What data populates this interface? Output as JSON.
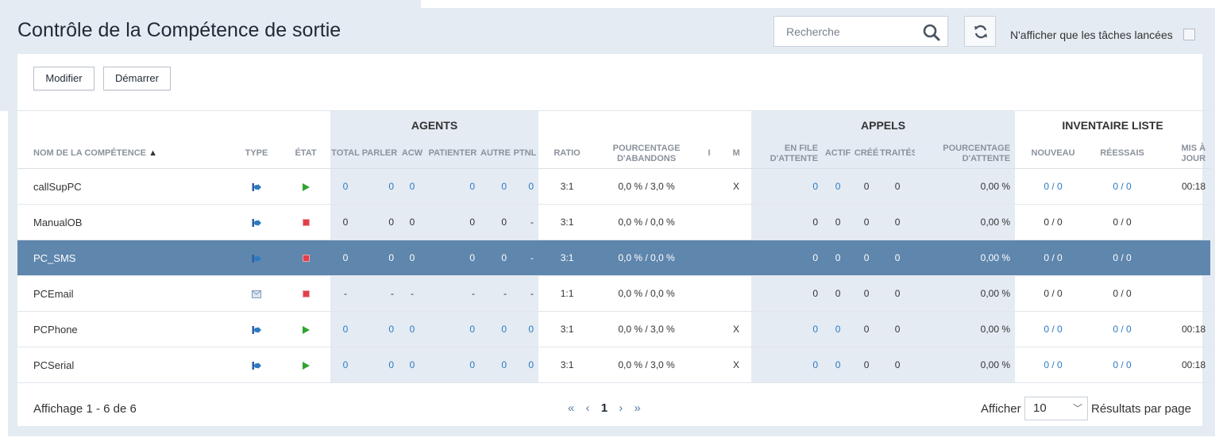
{
  "page": {
    "title": "Contrôle de la Compétence de sortie"
  },
  "search": {
    "placeholder": "Recherche"
  },
  "filter": {
    "label": "N'afficher que les tâches lancées",
    "checked": false
  },
  "toolbar": {
    "modify_label": "Modifier",
    "start_label": "Démarrer"
  },
  "table": {
    "groups": {
      "agents": "AGENTS",
      "appels": "APPELS",
      "inventaire": "INVENTAIRE LISTE"
    },
    "columns": {
      "name": "NOM DE LA COMPÉTENCE",
      "type": "TYPE",
      "etat": "ÉTAT",
      "total": "TOTAL",
      "parler": "PARLER",
      "acw": "ACW",
      "patienter": "PATIENTER",
      "autre": "AUTRE",
      "ptnl": "PTNL",
      "ratio": "RATIO",
      "pct_abandons_1": "POURCENTAGE",
      "pct_abandons_2": "D'ABANDONS",
      "i": "I",
      "m": "M",
      "file_1": "EN FILE",
      "file_2": "D'ATTENTE",
      "actif": "ACTIF",
      "cree": "CRÉÉ",
      "traites": "TRAITÉS",
      "pct_attente_1": "POURCENTAGE",
      "pct_attente_2": "D'ATTENTE",
      "nouveau": "NOUVEAU",
      "reessais": "RÉESSAIS",
      "maj_1": "MIS À",
      "maj_2": "JOUR"
    },
    "sort": {
      "column": "name",
      "direction": "asc"
    },
    "rows": [
      {
        "name": "callSupPC",
        "type": "phone",
        "state": "running",
        "total": "0",
        "parler": "0",
        "acw": "0",
        "patienter": "0",
        "autre": "0",
        "ptnl": "0",
        "ratio": "3:1",
        "abandons": "0,0 % / 3,0 %",
        "i": "",
        "m": "X",
        "file": "0",
        "actif": "0",
        "cree": "0",
        "traites": "0",
        "attente": "0,00 %",
        "nouveau": "0 / 0",
        "reessais": "0 / 0",
        "maj": "00:18",
        "links": true
      },
      {
        "name": "ManualOB",
        "type": "phone",
        "state": "stopped",
        "total": "0",
        "parler": "0",
        "acw": "0",
        "patienter": "0",
        "autre": "0",
        "ptnl": "-",
        "ratio": "3:1",
        "abandons": "0,0 % / 0,0 %",
        "i": "",
        "m": "",
        "file": "0",
        "actif": "0",
        "cree": "0",
        "traites": "0",
        "attente": "0,00 %",
        "nouveau": "0 / 0",
        "reessais": "0 / 0",
        "maj": "",
        "links": false
      },
      {
        "name": "PC_SMS",
        "type": "phone",
        "state": "stopped",
        "total": "0",
        "parler": "0",
        "acw": "0",
        "patienter": "0",
        "autre": "0",
        "ptnl": "-",
        "ratio": "3:1",
        "abandons": "0,0 % / 0,0 %",
        "i": "",
        "m": "",
        "file": "0",
        "actif": "0",
        "cree": "0",
        "traites": "0",
        "attente": "0,00 %",
        "nouveau": "0 / 0",
        "reessais": "0 / 0",
        "maj": "",
        "links": false,
        "selected": true
      },
      {
        "name": "PCEmail",
        "type": "email",
        "state": "stopped",
        "total": "-",
        "parler": "-",
        "acw": "-",
        "patienter": "-",
        "autre": "-",
        "ptnl": "-",
        "ratio": "1:1",
        "abandons": "0,0 % / 0,0 %",
        "i": "",
        "m": "",
        "file": "0",
        "actif": "0",
        "cree": "0",
        "traites": "0",
        "attente": "0,00 %",
        "nouveau": "0 / 0",
        "reessais": "0 / 0",
        "maj": "",
        "links": false
      },
      {
        "name": "PCPhone",
        "type": "phone",
        "state": "running",
        "total": "0",
        "parler": "0",
        "acw": "0",
        "patienter": "0",
        "autre": "0",
        "ptnl": "0",
        "ratio": "3:1",
        "abandons": "0,0 % / 3,0 %",
        "i": "",
        "m": "X",
        "file": "0",
        "actif": "0",
        "cree": "0",
        "traites": "0",
        "attente": "0,00 %",
        "nouveau": "0 / 0",
        "reessais": "0 / 0",
        "maj": "00:18",
        "links": true
      },
      {
        "name": "PCSerial",
        "type": "phone",
        "state": "running",
        "total": "0",
        "parler": "0",
        "acw": "0",
        "patienter": "0",
        "autre": "0",
        "ptnl": "0",
        "ratio": "3:1",
        "abandons": "0,0 % / 3,0 %",
        "i": "",
        "m": "X",
        "file": "0",
        "actif": "0",
        "cree": "0",
        "traites": "0",
        "attente": "0,00 %",
        "nouveau": "0 / 0",
        "reessais": "0 / 0",
        "maj": "00:18",
        "links": true
      }
    ]
  },
  "footer": {
    "summary": "Affichage 1 - 6 de 6",
    "pagination": {
      "first": "«",
      "prev": "‹",
      "current": "1",
      "next": "›",
      "last": "»"
    },
    "show_label": "Afficher",
    "page_size": "10",
    "per_page_label": "Résultats par page"
  },
  "colors": {
    "accent": "#2d7ac0",
    "selected_row": "#5f86ad",
    "shade": "#e4ebf3",
    "running": "#2fa52f",
    "stopped": "#e0404a"
  }
}
